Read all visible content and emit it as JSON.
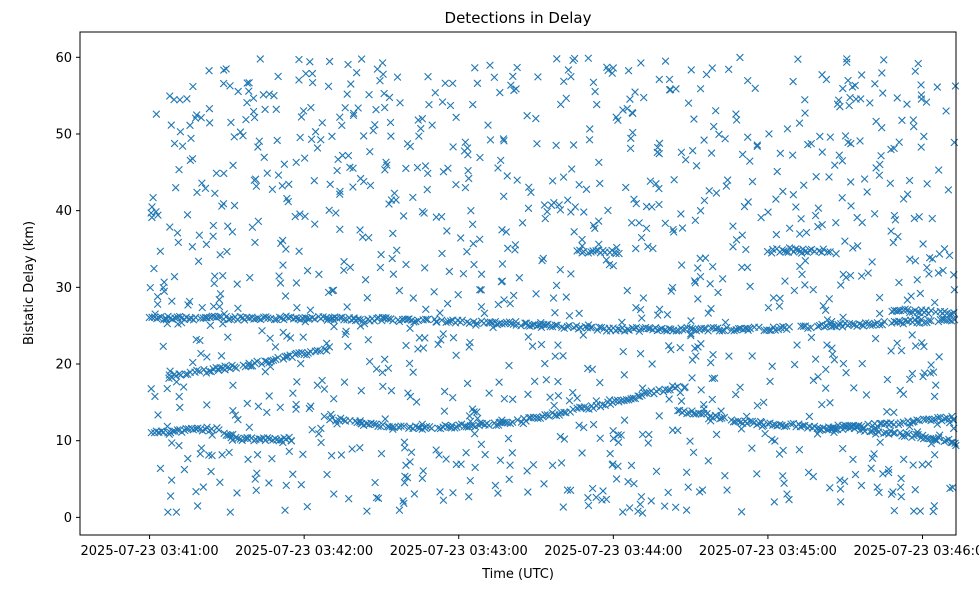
{
  "chart_data": {
    "type": "scatter",
    "title": "Detections in Delay",
    "xlabel": "Time (UTC)",
    "ylabel": "Bistatic Delay (km)",
    "x_unit": "seconds since 2025-07-23 03:41:00",
    "xlim": [
      "2025-07-23 03:40:33",
      "2025-07-23 03:46:13"
    ],
    "ylim": [
      -2.3,
      63.3
    ],
    "x_ticks": [
      "2025-07-23 03:41:00",
      "2025-07-23 03:42:00",
      "2025-07-23 03:43:00",
      "2025-07-23 03:44:00",
      "2025-07-23 03:45:00",
      "2025-07-23 03:46:00"
    ],
    "y_ticks": [
      0,
      10,
      20,
      30,
      40,
      50,
      60
    ],
    "marker": "x",
    "color": "#1f77b4",
    "grid": false,
    "time_range": [
      "2025-07-23 03:41:00",
      "2025-07-23 03:46:13"
    ],
    "tracks": [
      {
        "points": [
          [
            "2025-07-23 03:41:00",
            26.0
          ],
          [
            "2025-07-23 03:42:00",
            26.0
          ],
          [
            "2025-07-23 03:43:00",
            25.6
          ],
          [
            "2025-07-23 03:44:00",
            24.5
          ],
          [
            "2025-07-23 03:45:00",
            24.6
          ],
          [
            "2025-07-23 03:46:13",
            25.8
          ]
        ]
      },
      {
        "points": [
          [
            "2025-07-23 03:41:00",
            11.0
          ],
          [
            "2025-07-23 03:41:25",
            11.6
          ],
          [
            "2025-07-23 03:41:35",
            10.2
          ],
          [
            "2025-07-23 03:41:55",
            10.2
          ]
        ]
      },
      {
        "points": [
          [
            "2025-07-23 03:41:05",
            18.3
          ],
          [
            "2025-07-23 03:41:40",
            20.0
          ],
          [
            "2025-07-23 03:42:10",
            22.0
          ]
        ]
      },
      {
        "points": [
          [
            "2025-07-23 03:42:08",
            13.0
          ],
          [
            "2025-07-23 03:42:25",
            12.1
          ],
          [
            "2025-07-23 03:42:45",
            11.6
          ],
          [
            "2025-07-23 03:43:20",
            12.3
          ],
          [
            "2025-07-23 03:44:00",
            15.0
          ],
          [
            "2025-07-23 03:44:25",
            17.1
          ]
        ]
      },
      {
        "points": [
          [
            "2025-07-23 03:44:25",
            14.0
          ],
          [
            "2025-07-23 03:44:50",
            12.4
          ],
          [
            "2025-07-23 03:45:20",
            11.8
          ],
          [
            "2025-07-23 03:45:35",
            11.8
          ]
        ]
      },
      {
        "points": [
          [
            "2025-07-23 03:45:20",
            11.4
          ],
          [
            "2025-07-23 03:46:13",
            13.0
          ]
        ]
      },
      {
        "points": [
          [
            "2025-07-23 03:45:35",
            11.6
          ],
          [
            "2025-07-23 03:46:13",
            9.9
          ]
        ]
      },
      {
        "points": [
          [
            "2025-07-23 03:45:00",
            34.8
          ],
          [
            "2025-07-23 03:45:25",
            34.8
          ]
        ]
      },
      {
        "points": [
          [
            "2025-07-23 03:45:48",
            27.1
          ],
          [
            "2025-07-23 03:46:13",
            26.5
          ]
        ]
      },
      {
        "points": [
          [
            "2025-07-23 03:43:45",
            34.6
          ],
          [
            "2025-07-23 03:44:03",
            34.6
          ]
        ]
      }
    ],
    "noise_density": "uniform clutter over 0-60 km across full time span"
  }
}
